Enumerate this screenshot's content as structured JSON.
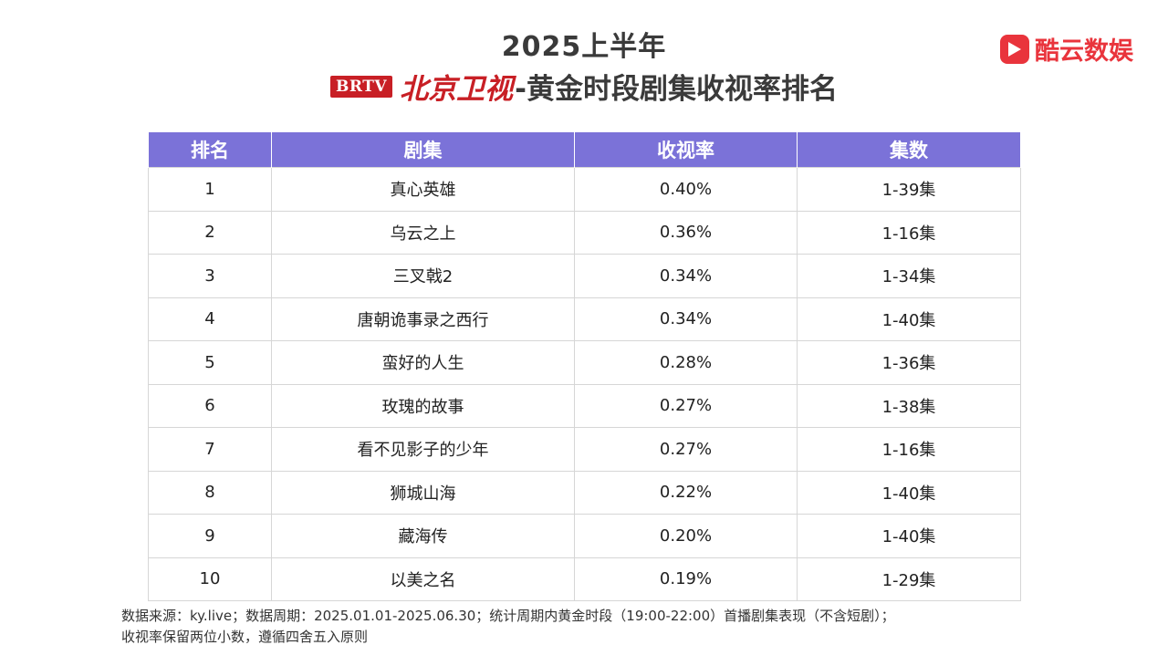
{
  "header": {
    "title_line1": "2025上半年",
    "brtv_logo": "BRTV",
    "channel": "北京卫视",
    "title_line2": "-黄金时段剧集收视率排名"
  },
  "brand": {
    "icon": "play-icon",
    "name": "酷云数娱",
    "color": "#e9343c"
  },
  "table": {
    "header_color": "#7b72d8",
    "columns": [
      "排名",
      "剧集",
      "收视率",
      "集数"
    ],
    "rows": [
      {
        "rank": "1",
        "title": "真心英雄",
        "rating": "0.40%",
        "episodes": "1-39集"
      },
      {
        "rank": "2",
        "title": "乌云之上",
        "rating": "0.36%",
        "episodes": "1-16集"
      },
      {
        "rank": "3",
        "title": "三叉戟2",
        "rating": "0.34%",
        "episodes": "1-34集"
      },
      {
        "rank": "4",
        "title": "唐朝诡事录之西行",
        "rating": "0.34%",
        "episodes": "1-40集"
      },
      {
        "rank": "5",
        "title": "蛮好的人生",
        "rating": "0.28%",
        "episodes": "1-36集"
      },
      {
        "rank": "6",
        "title": "玫瑰的故事",
        "rating": "0.27%",
        "episodes": "1-38集"
      },
      {
        "rank": "7",
        "title": "看不见影子的少年",
        "rating": "0.27%",
        "episodes": "1-16集"
      },
      {
        "rank": "8",
        "title": "狮城山海",
        "rating": "0.22%",
        "episodes": "1-40集"
      },
      {
        "rank": "9",
        "title": "藏海传",
        "rating": "0.20%",
        "episodes": "1-40集"
      },
      {
        "rank": "10",
        "title": "以美之名",
        "rating": "0.19%",
        "episodes": "1-29集"
      }
    ]
  },
  "footer": {
    "line1": "数据来源：ky.live；数据周期：2025.01.01-2025.06.30；统计周期内黄金时段（19:00-22:00）首播剧集表现（不含短剧）；",
    "line2": "收视率保留两位小数，遵循四舍五入原则"
  }
}
